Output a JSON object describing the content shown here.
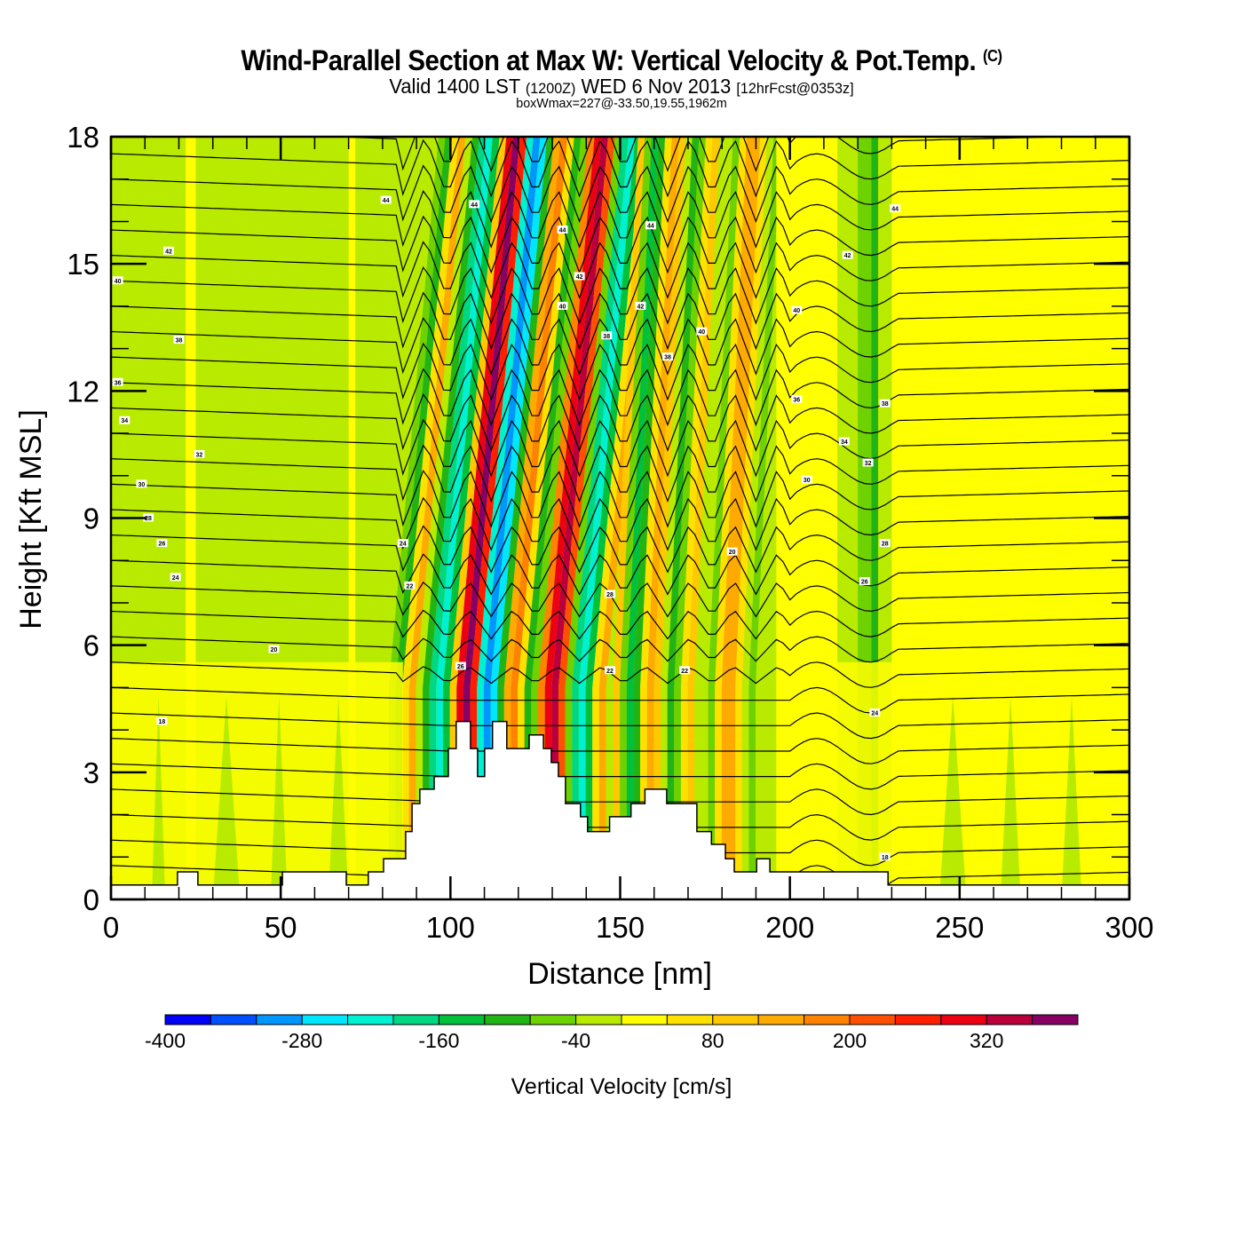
{
  "header": {
    "title": "Wind-Parallel Section at Max W: Vertical Velocity & Pot.Temp.",
    "copyright_mark": "(C)",
    "valid_prefix": "Valid 1400 LST",
    "valid_utc": "(1200Z)",
    "valid_date": "WED 6 Nov 2013",
    "forecast": "[12hrFcst@0353z]",
    "box_wmax": "boxWmax=227@-33.50,19.55,1962m"
  },
  "chart_data": {
    "type": "heatmap",
    "title": "Wind-Parallel Section at Max W: Vertical Velocity & Pot.Temp.",
    "xlabel": "Distance [nm]",
    "ylabel": "Height [Kft MSL]",
    "xlim": [
      0,
      300
    ],
    "ylim": [
      0,
      18
    ],
    "x_ticks": [
      0,
      50,
      100,
      150,
      200,
      250,
      300
    ],
    "x_tick_labels": [
      "0",
      "50",
      "100",
      "150",
      "200",
      "250",
      "300"
    ],
    "x_minor_step": 10,
    "y_ticks": [
      0,
      3,
      6,
      9,
      12,
      15,
      18
    ],
    "y_tick_labels": [
      "0",
      "3",
      "6",
      "9",
      "12",
      "15",
      "18"
    ],
    "y_minor_step": 1,
    "colorbar": {
      "title": "Vertical Velocity [cm/s]",
      "min": -400,
      "max": 400,
      "step": 40,
      "tick_values": [
        -400,
        -280,
        -160,
        -40,
        80,
        200,
        320
      ],
      "tick_labels": [
        "-400",
        "-280",
        "-160",
        "-40",
        "80",
        "200",
        "320"
      ],
      "colors": [
        "#0000f5",
        "#0050ff",
        "#0096ff",
        "#00e6ff",
        "#00f0d2",
        "#00d782",
        "#00c03c",
        "#22b414",
        "#6ed200",
        "#b9eb00",
        "#ffff00",
        "#ffe100",
        "#ffc800",
        "#ffaa00",
        "#ff8200",
        "#ff5000",
        "#ff1e00",
        "#eb0014",
        "#b9003c",
        "#870064"
      ]
    },
    "velocity_bands": [
      {
        "x0": 0,
        "x1": 22,
        "value": -40
      },
      {
        "x0": 22,
        "x1": 25,
        "value": 20
      },
      {
        "x0": 25,
        "x1": 70,
        "value": -40
      },
      {
        "x0": 70,
        "x1": 72,
        "value": 20
      },
      {
        "x0": 72,
        "x1": 86,
        "value": -40
      },
      {
        "x0": 86,
        "x1": 88,
        "value": -80
      },
      {
        "x0": 88,
        "x1": 90,
        "value": -120
      },
      {
        "x0": 90,
        "x1": 92,
        "value": 40
      },
      {
        "x0": 92,
        "x1": 94,
        "value": 120
      },
      {
        "x0": 94,
        "x1": 96,
        "value": -40
      },
      {
        "x0": 96,
        "x1": 98,
        "value": -120
      },
      {
        "x0": 98,
        "x1": 100,
        "value": -200
      },
      {
        "x0": 100,
        "x1": 102,
        "value": -240
      },
      {
        "x0": 102,
        "x1": 104,
        "value": -160
      },
      {
        "x0": 104,
        "x1": 106,
        "value": 80
      },
      {
        "x0": 106,
        "x1": 108,
        "value": 280
      },
      {
        "x0": 108,
        "x1": 110,
        "value": 360
      },
      {
        "x0": 110,
        "x1": 112,
        "value": 240
      },
      {
        "x0": 112,
        "x1": 114,
        "value": -240
      },
      {
        "x0": 114,
        "x1": 116,
        "value": -320
      },
      {
        "x0": 116,
        "x1": 118,
        "value": -280
      },
      {
        "x0": 118,
        "x1": 120,
        "value": -120
      },
      {
        "x0": 120,
        "x1": 122,
        "value": 120
      },
      {
        "x0": 122,
        "x1": 124,
        "value": 160
      },
      {
        "x0": 124,
        "x1": 126,
        "value": 40
      },
      {
        "x0": 126,
        "x1": 128,
        "value": -120
      },
      {
        "x0": 128,
        "x1": 130,
        "value": -80
      },
      {
        "x0": 130,
        "x1": 132,
        "value": 160
      },
      {
        "x0": 132,
        "x1": 134,
        "value": 280
      },
      {
        "x0": 134,
        "x1": 136,
        "value": 320
      },
      {
        "x0": 136,
        "x1": 138,
        "value": 200
      },
      {
        "x0": 138,
        "x1": 140,
        "value": -80
      },
      {
        "x0": 140,
        "x1": 142,
        "value": -200
      },
      {
        "x0": 142,
        "x1": 144,
        "value": -240
      },
      {
        "x0": 144,
        "x1": 146,
        "value": -160
      },
      {
        "x0": 146,
        "x1": 148,
        "value": 40
      },
      {
        "x0": 148,
        "x1": 150,
        "value": 120
      },
      {
        "x0": 150,
        "x1": 152,
        "value": 80
      },
      {
        "x0": 152,
        "x1": 154,
        "value": -80
      },
      {
        "x0": 154,
        "x1": 156,
        "value": -160
      },
      {
        "x0": 156,
        "x1": 158,
        "value": -120
      },
      {
        "x0": 158,
        "x1": 160,
        "value": 40
      },
      {
        "x0": 160,
        "x1": 162,
        "value": 120
      },
      {
        "x0": 162,
        "x1": 164,
        "value": 80
      },
      {
        "x0": 164,
        "x1": 166,
        "value": -40
      },
      {
        "x0": 166,
        "x1": 168,
        "value": -120
      },
      {
        "x0": 168,
        "x1": 170,
        "value": -80
      },
      {
        "x0": 170,
        "x1": 172,
        "value": 40
      },
      {
        "x0": 172,
        "x1": 174,
        "value": 80
      },
      {
        "x0": 174,
        "x1": 178,
        "value": -40
      },
      {
        "x0": 178,
        "x1": 180,
        "value": -80
      },
      {
        "x0": 180,
        "x1": 182,
        "value": 40
      },
      {
        "x0": 182,
        "x1": 186,
        "value": 120
      },
      {
        "x0": 186,
        "x1": 188,
        "value": 40
      },
      {
        "x0": 188,
        "x1": 190,
        "value": -40
      },
      {
        "x0": 190,
        "x1": 192,
        "value": -80
      },
      {
        "x0": 192,
        "x1": 196,
        "value": -40
      },
      {
        "x0": 196,
        "x1": 214,
        "value": 20
      },
      {
        "x0": 214,
        "x1": 220,
        "value": -40
      },
      {
        "x0": 220,
        "x1": 224,
        "value": -80
      },
      {
        "x0": 224,
        "x1": 226,
        "value": -120
      },
      {
        "x0": 226,
        "x1": 230,
        "value": -40
      },
      {
        "x0": 230,
        "x1": 300,
        "value": 20
      }
    ],
    "lower_layer_value": 20,
    "terrain_profile": {
      "x": [
        0,
        19.6,
        19.6,
        25.6,
        25.6,
        50.5,
        50.5,
        69.3,
        69.3,
        75.8,
        75.8,
        80.3,
        80.3,
        86.8,
        86.8,
        88.7,
        88.7,
        91.0,
        91.0,
        95.2,
        95.2,
        99.4,
        99.4,
        101.7,
        101.7,
        105.9,
        105.9,
        108.0,
        108.0,
        110.1,
        110.1,
        112.4,
        112.4,
        116.6,
        116.6,
        123.2,
        123.2,
        127.4,
        127.4,
        129.7,
        129.7,
        131.8,
        131.8,
        133.9,
        133.9,
        138.3,
        138.3,
        140.4,
        140.4,
        146.9,
        146.9,
        153.2,
        153.2,
        157.3,
        157.3,
        163.7,
        163.7,
        172.6,
        172.6,
        176.9,
        176.9,
        181.0,
        181.0,
        183.6,
        183.6,
        190.2,
        190.2,
        194.1,
        194.1,
        228.9,
        228.9,
        300
      ],
      "height": [
        0.34,
        0.34,
        0.65,
        0.65,
        0.34,
        0.34,
        0.65,
        0.65,
        0.34,
        0.34,
        0.65,
        0.65,
        0.96,
        0.96,
        1.6,
        1.6,
        2.26,
        2.26,
        2.6,
        2.6,
        2.9,
        2.9,
        3.56,
        3.56,
        4.2,
        4.2,
        3.56,
        3.56,
        2.9,
        2.9,
        3.56,
        3.56,
        4.2,
        4.2,
        3.56,
        3.56,
        3.88,
        3.88,
        3.56,
        3.56,
        3.23,
        3.23,
        2.9,
        2.9,
        2.26,
        2.26,
        1.95,
        1.95,
        1.6,
        1.6,
        1.95,
        1.95,
        2.26,
        2.26,
        2.6,
        2.6,
        2.26,
        2.26,
        1.6,
        1.6,
        1.3,
        1.3,
        0.96,
        0.96,
        0.65,
        0.65,
        0.96,
        0.96,
        0.65,
        0.65,
        0.34,
        0.34
      ]
    },
    "theta_contours": {
      "levels": [
        18,
        20,
        22,
        24,
        26,
        28,
        30,
        32,
        34,
        36,
        38,
        40,
        42,
        44
      ],
      "labels": [
        {
          "text": "44",
          "x": 81,
          "y": 16.5
        },
        {
          "text": "42",
          "x": 17,
          "y": 15.3
        },
        {
          "text": "40",
          "x": 2,
          "y": 14.6
        },
        {
          "text": "38",
          "x": 20,
          "y": 13.2
        },
        {
          "text": "36",
          "x": 2,
          "y": 12.2
        },
        {
          "text": "34",
          "x": 4,
          "y": 11.3
        },
        {
          "text": "32",
          "x": 26,
          "y": 10.5
        },
        {
          "text": "30",
          "x": 9,
          "y": 9.8
        },
        {
          "text": "28",
          "x": 11,
          "y": 9.0
        },
        {
          "text": "26",
          "x": 15,
          "y": 8.4
        },
        {
          "text": "24",
          "x": 19,
          "y": 7.6
        },
        {
          "text": "20",
          "x": 48,
          "y": 5.9
        },
        {
          "text": "18",
          "x": 15,
          "y": 4.2
        },
        {
          "text": "44",
          "x": 107,
          "y": 16.4
        },
        {
          "text": "44",
          "x": 133,
          "y": 15.8
        },
        {
          "text": "42",
          "x": 138,
          "y": 14.7
        },
        {
          "text": "40",
          "x": 133,
          "y": 14.0
        },
        {
          "text": "38",
          "x": 146,
          "y": 13.3
        },
        {
          "text": "44",
          "x": 159,
          "y": 15.9
        },
        {
          "text": "42",
          "x": 156,
          "y": 14.0
        },
        {
          "text": "40",
          "x": 174,
          "y": 13.4
        },
        {
          "text": "38",
          "x": 164,
          "y": 12.8
        },
        {
          "text": "44",
          "x": 231,
          "y": 16.3
        },
        {
          "text": "42",
          "x": 217,
          "y": 15.2
        },
        {
          "text": "40",
          "x": 202,
          "y": 13.9
        },
        {
          "text": "38",
          "x": 228,
          "y": 11.7
        },
        {
          "text": "36",
          "x": 202,
          "y": 11.8
        },
        {
          "text": "34",
          "x": 216,
          "y": 10.8
        },
        {
          "text": "32",
          "x": 223,
          "y": 10.3
        },
        {
          "text": "30",
          "x": 205,
          "y": 9.9
        },
        {
          "text": "28",
          "x": 228,
          "y": 8.4
        },
        {
          "text": "26",
          "x": 222,
          "y": 7.5
        },
        {
          "text": "24",
          "x": 225,
          "y": 4.4
        },
        {
          "text": "18",
          "x": 228,
          "y": 1.0
        },
        {
          "text": "22",
          "x": 88,
          "y": 7.4
        },
        {
          "text": "24",
          "x": 86,
          "y": 8.4
        },
        {
          "text": "26",
          "x": 103,
          "y": 5.5
        },
        {
          "text": "28",
          "x": 147,
          "y": 7.2
        },
        {
          "text": "22",
          "x": 147,
          "y": 5.4
        },
        {
          "text": "22",
          "x": 169,
          "y": 5.4
        },
        {
          "text": "20",
          "x": 183,
          "y": 8.2
        }
      ]
    }
  }
}
